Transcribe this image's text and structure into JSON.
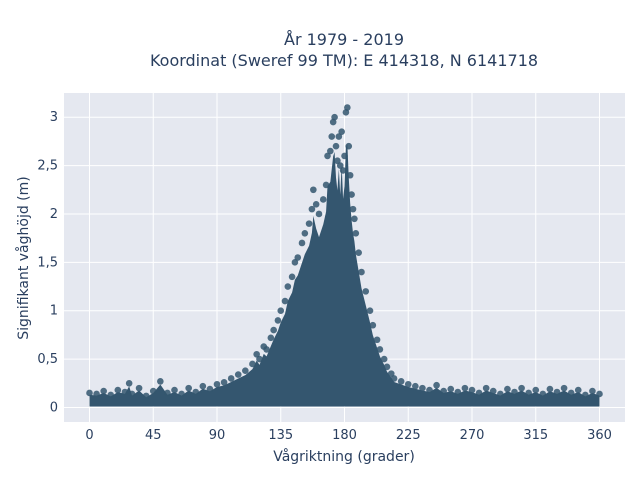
{
  "chart_data": {
    "type": "scatter",
    "title_line1": "År 1979 - 2019",
    "title_line2": "Koordinat (Sweref 99 TM): E 414318, N 6141718",
    "xlabel": "Vågriktning (grader)",
    "ylabel": "Signifikant våghöjd (m)",
    "xlim": [
      -18,
      378
    ],
    "ylim": [
      -0.15,
      3.25
    ],
    "x_ticks": [
      0,
      45,
      90,
      135,
      180,
      225,
      270,
      315,
      360
    ],
    "x_tick_labels": [
      "0",
      "45",
      "90",
      "135",
      "180",
      "225",
      "270",
      "315",
      "360"
    ],
    "y_ticks": [
      0,
      0.5,
      1,
      1.5,
      2,
      2.5,
      3
    ],
    "y_tick_labels": [
      "0",
      "0,5",
      "1",
      "1,5",
      "2",
      "2,5",
      "3"
    ],
    "grid": true,
    "marker_color": "#34566f",
    "plot_bg": "#e5e8f0",
    "points_note_series": "Dense point cloud: baseline ~0.1-0.25 m across 0-360°, peak near 170-180° up to ~3.1 m",
    "points": [
      [
        0,
        0.15
      ],
      [
        5,
        0.14
      ],
      [
        10,
        0.17
      ],
      [
        15,
        0.13
      ],
      [
        20,
        0.18
      ],
      [
        25,
        0.16
      ],
      [
        28,
        0.25
      ],
      [
        30,
        0.14
      ],
      [
        35,
        0.2
      ],
      [
        40,
        0.12
      ],
      [
        45,
        0.17
      ],
      [
        50,
        0.27
      ],
      [
        55,
        0.15
      ],
      [
        60,
        0.18
      ],
      [
        65,
        0.14
      ],
      [
        70,
        0.2
      ],
      [
        75,
        0.16
      ],
      [
        80,
        0.22
      ],
      [
        85,
        0.19
      ],
      [
        90,
        0.24
      ],
      [
        95,
        0.26
      ],
      [
        100,
        0.3
      ],
      [
        105,
        0.34
      ],
      [
        110,
        0.38
      ],
      [
        115,
        0.45
      ],
      [
        118,
        0.55
      ],
      [
        120,
        0.5
      ],
      [
        123,
        0.63
      ],
      [
        125,
        0.6
      ],
      [
        128,
        0.72
      ],
      [
        130,
        0.8
      ],
      [
        133,
        0.9
      ],
      [
        135,
        1.0
      ],
      [
        138,
        1.1
      ],
      [
        140,
        1.25
      ],
      [
        143,
        1.35
      ],
      [
        145,
        1.5
      ],
      [
        147,
        1.55
      ],
      [
        150,
        1.7
      ],
      [
        152,
        1.8
      ],
      [
        155,
        1.9
      ],
      [
        157,
        2.05
      ],
      [
        158,
        2.25
      ],
      [
        160,
        2.1
      ],
      [
        162,
        2.0
      ],
      [
        165,
        2.15
      ],
      [
        167,
        2.3
      ],
      [
        168,
        2.6
      ],
      [
        170,
        2.65
      ],
      [
        171,
        2.8
      ],
      [
        172,
        2.95
      ],
      [
        173,
        3.0
      ],
      [
        174,
        2.7
      ],
      [
        175,
        2.55
      ],
      [
        176,
        2.8
      ],
      [
        177,
        2.5
      ],
      [
        178,
        2.85
      ],
      [
        179,
        2.45
      ],
      [
        180,
        2.6
      ],
      [
        181,
        3.05
      ],
      [
        182,
        3.1
      ],
      [
        183,
        2.7
      ],
      [
        184,
        2.4
      ],
      [
        185,
        2.2
      ],
      [
        186,
        2.05
      ],
      [
        187,
        1.95
      ],
      [
        188,
        1.8
      ],
      [
        190,
        1.6
      ],
      [
        192,
        1.4
      ],
      [
        195,
        1.2
      ],
      [
        198,
        1.0
      ],
      [
        200,
        0.85
      ],
      [
        203,
        0.7
      ],
      [
        205,
        0.6
      ],
      [
        208,
        0.5
      ],
      [
        210,
        0.42
      ],
      [
        213,
        0.35
      ],
      [
        215,
        0.3
      ],
      [
        220,
        0.27
      ],
      [
        225,
        0.24
      ],
      [
        230,
        0.22
      ],
      [
        235,
        0.2
      ],
      [
        240,
        0.18
      ],
      [
        245,
        0.23
      ],
      [
        250,
        0.17
      ],
      [
        255,
        0.19
      ],
      [
        260,
        0.16
      ],
      [
        265,
        0.2
      ],
      [
        270,
        0.18
      ],
      [
        275,
        0.15
      ],
      [
        280,
        0.2
      ],
      [
        285,
        0.17
      ],
      [
        290,
        0.14
      ],
      [
        295,
        0.19
      ],
      [
        300,
        0.16
      ],
      [
        305,
        0.2
      ],
      [
        310,
        0.15
      ],
      [
        315,
        0.18
      ],
      [
        320,
        0.14
      ],
      [
        325,
        0.19
      ],
      [
        330,
        0.16
      ],
      [
        335,
        0.2
      ],
      [
        340,
        0.15
      ],
      [
        345,
        0.18
      ],
      [
        350,
        0.13
      ],
      [
        355,
        0.17
      ],
      [
        360,
        0.14
      ]
    ]
  }
}
